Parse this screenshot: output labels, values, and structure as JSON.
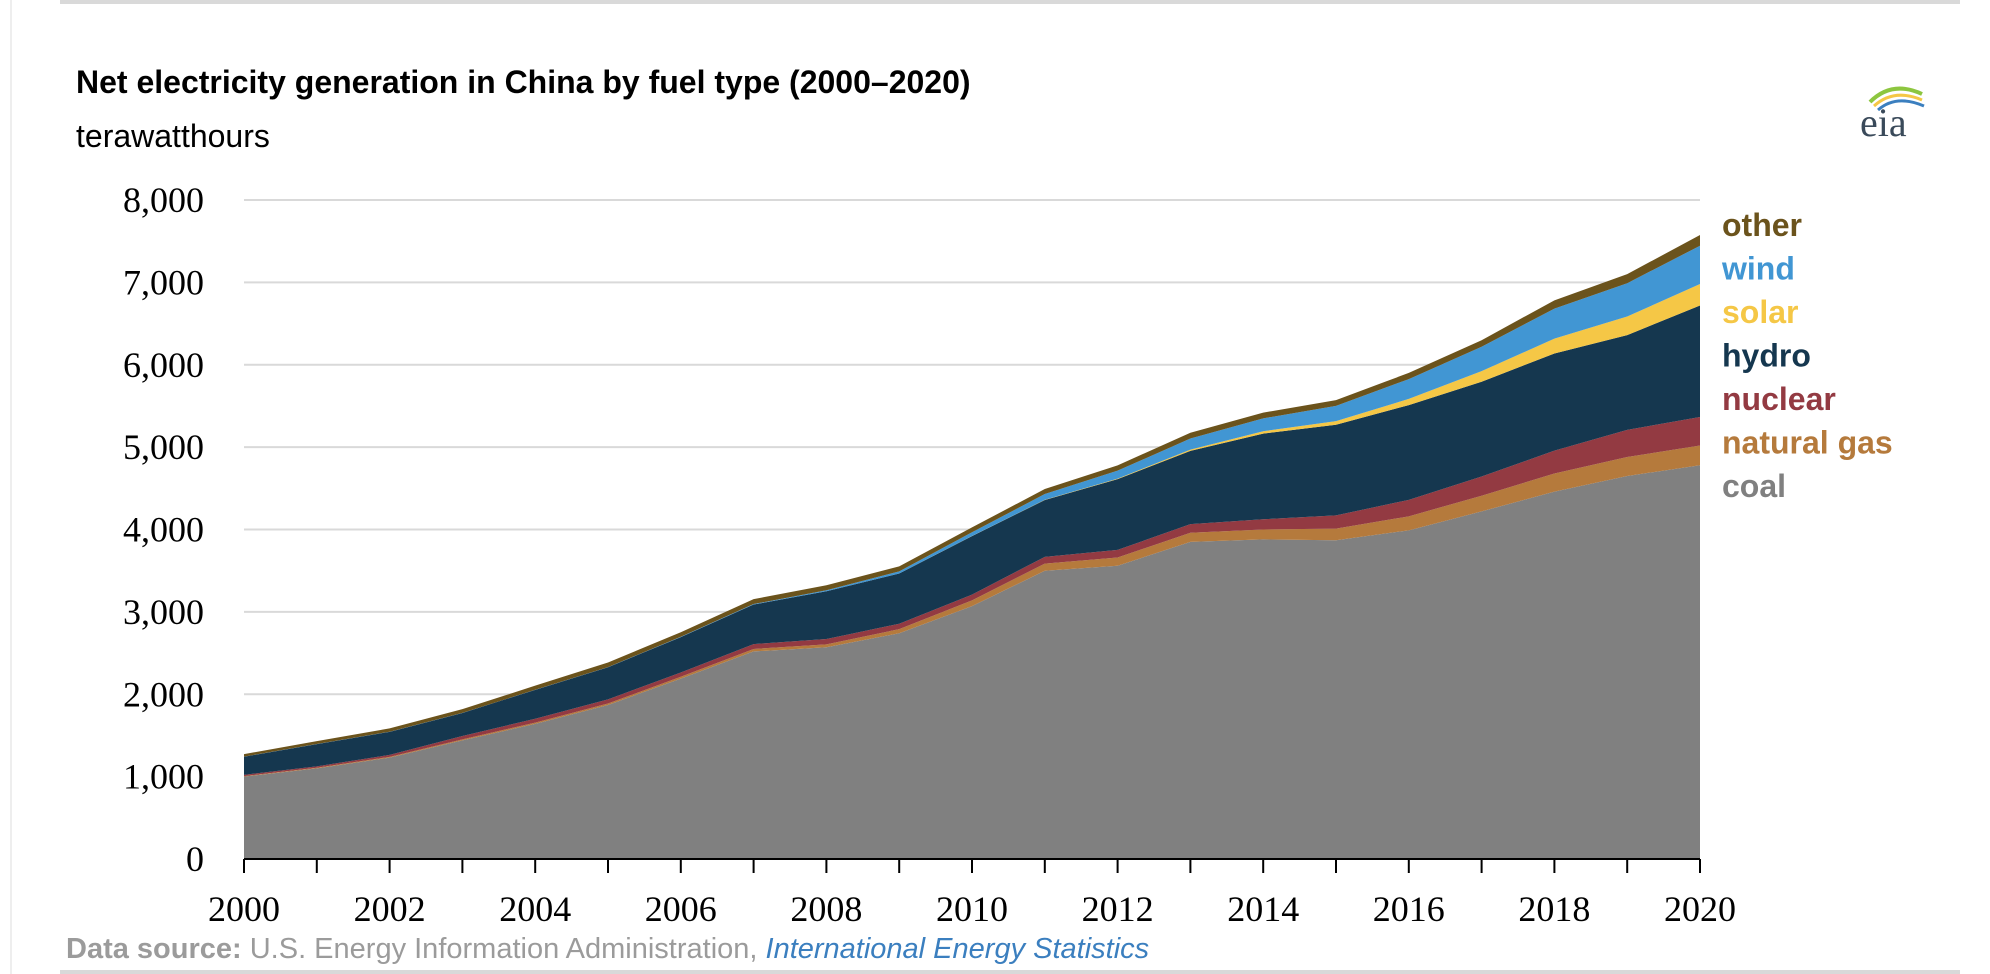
{
  "chart_data": {
    "type": "area",
    "stacked": true,
    "title": "Net electricity generation in China by fuel type (2000–2020)",
    "ylabel": "terawatthours",
    "xlabel": "",
    "ylim": [
      0,
      8000
    ],
    "yticks": [
      "0",
      "1,000",
      "2,000",
      "3,000",
      "4,000",
      "5,000",
      "6,000",
      "7,000",
      "8,000"
    ],
    "xticks": [
      "2000",
      "2002",
      "2004",
      "2006",
      "2008",
      "2010",
      "2012",
      "2014",
      "2016",
      "2018",
      "2020"
    ],
    "grid": true,
    "legend_placement": "right",
    "x": [
      2000,
      2001,
      2002,
      2003,
      2004,
      2005,
      2006,
      2007,
      2008,
      2009,
      2010,
      2011,
      2012,
      2013,
      2014,
      2015,
      2016,
      2017,
      2018,
      2019,
      2020
    ],
    "series": [
      {
        "name": "coal",
        "color": "#808080",
        "values": [
          1000,
          1100,
          1230,
          1440,
          1640,
          1870,
          2190,
          2520,
          2570,
          2740,
          3070,
          3500,
          3560,
          3850,
          3880,
          3870,
          3990,
          4220,
          4460,
          4650,
          4780
        ]
      },
      {
        "name": "natural gas",
        "color": "#b57a3c",
        "values": [
          6,
          8,
          10,
          12,
          15,
          18,
          22,
          30,
          35,
          50,
          70,
          85,
          100,
          110,
          120,
          140,
          170,
          190,
          220,
          230,
          240
        ]
      },
      {
        "name": "nuclear",
        "color": "#933a42",
        "values": [
          16,
          17,
          24,
          41,
          48,
          50,
          52,
          59,
          65,
          66,
          70,
          83,
          92,
          105,
          124,
          161,
          200,
          233,
          277,
          330,
          345
        ]
      },
      {
        "name": "hydro",
        "color": "#15374f",
        "values": [
          220,
          270,
          280,
          280,
          350,
          390,
          430,
          480,
          580,
          610,
          710,
          690,
          860,
          890,
          1040,
          1100,
          1150,
          1150,
          1180,
          1150,
          1355
        ]
      },
      {
        "name": "solar",
        "color": "#f5c746",
        "values": [
          0,
          0,
          0,
          0,
          0,
          0,
          0,
          0,
          0,
          0,
          1,
          3,
          6,
          15,
          29,
          45,
          75,
          130,
          180,
          225,
          260
        ]
      },
      {
        "name": "wind",
        "color": "#4196d3",
        "values": [
          1,
          1,
          1,
          1,
          1,
          2,
          4,
          6,
          13,
          26,
          45,
          70,
          96,
          135,
          156,
          185,
          241,
          295,
          365,
          405,
          465
        ]
      },
      {
        "name": "other",
        "color": "#6b531c",
        "values": [
          30,
          35,
          40,
          45,
          50,
          55,
          55,
          60,
          60,
          60,
          60,
          60,
          65,
          70,
          70,
          70,
          75,
          80,
          100,
          110,
          130
        ]
      }
    ]
  },
  "source": {
    "label": "Data source:",
    "text": " U.S. Energy Information Administration, ",
    "link": "International Energy Statistics"
  },
  "logo_text": "eia"
}
